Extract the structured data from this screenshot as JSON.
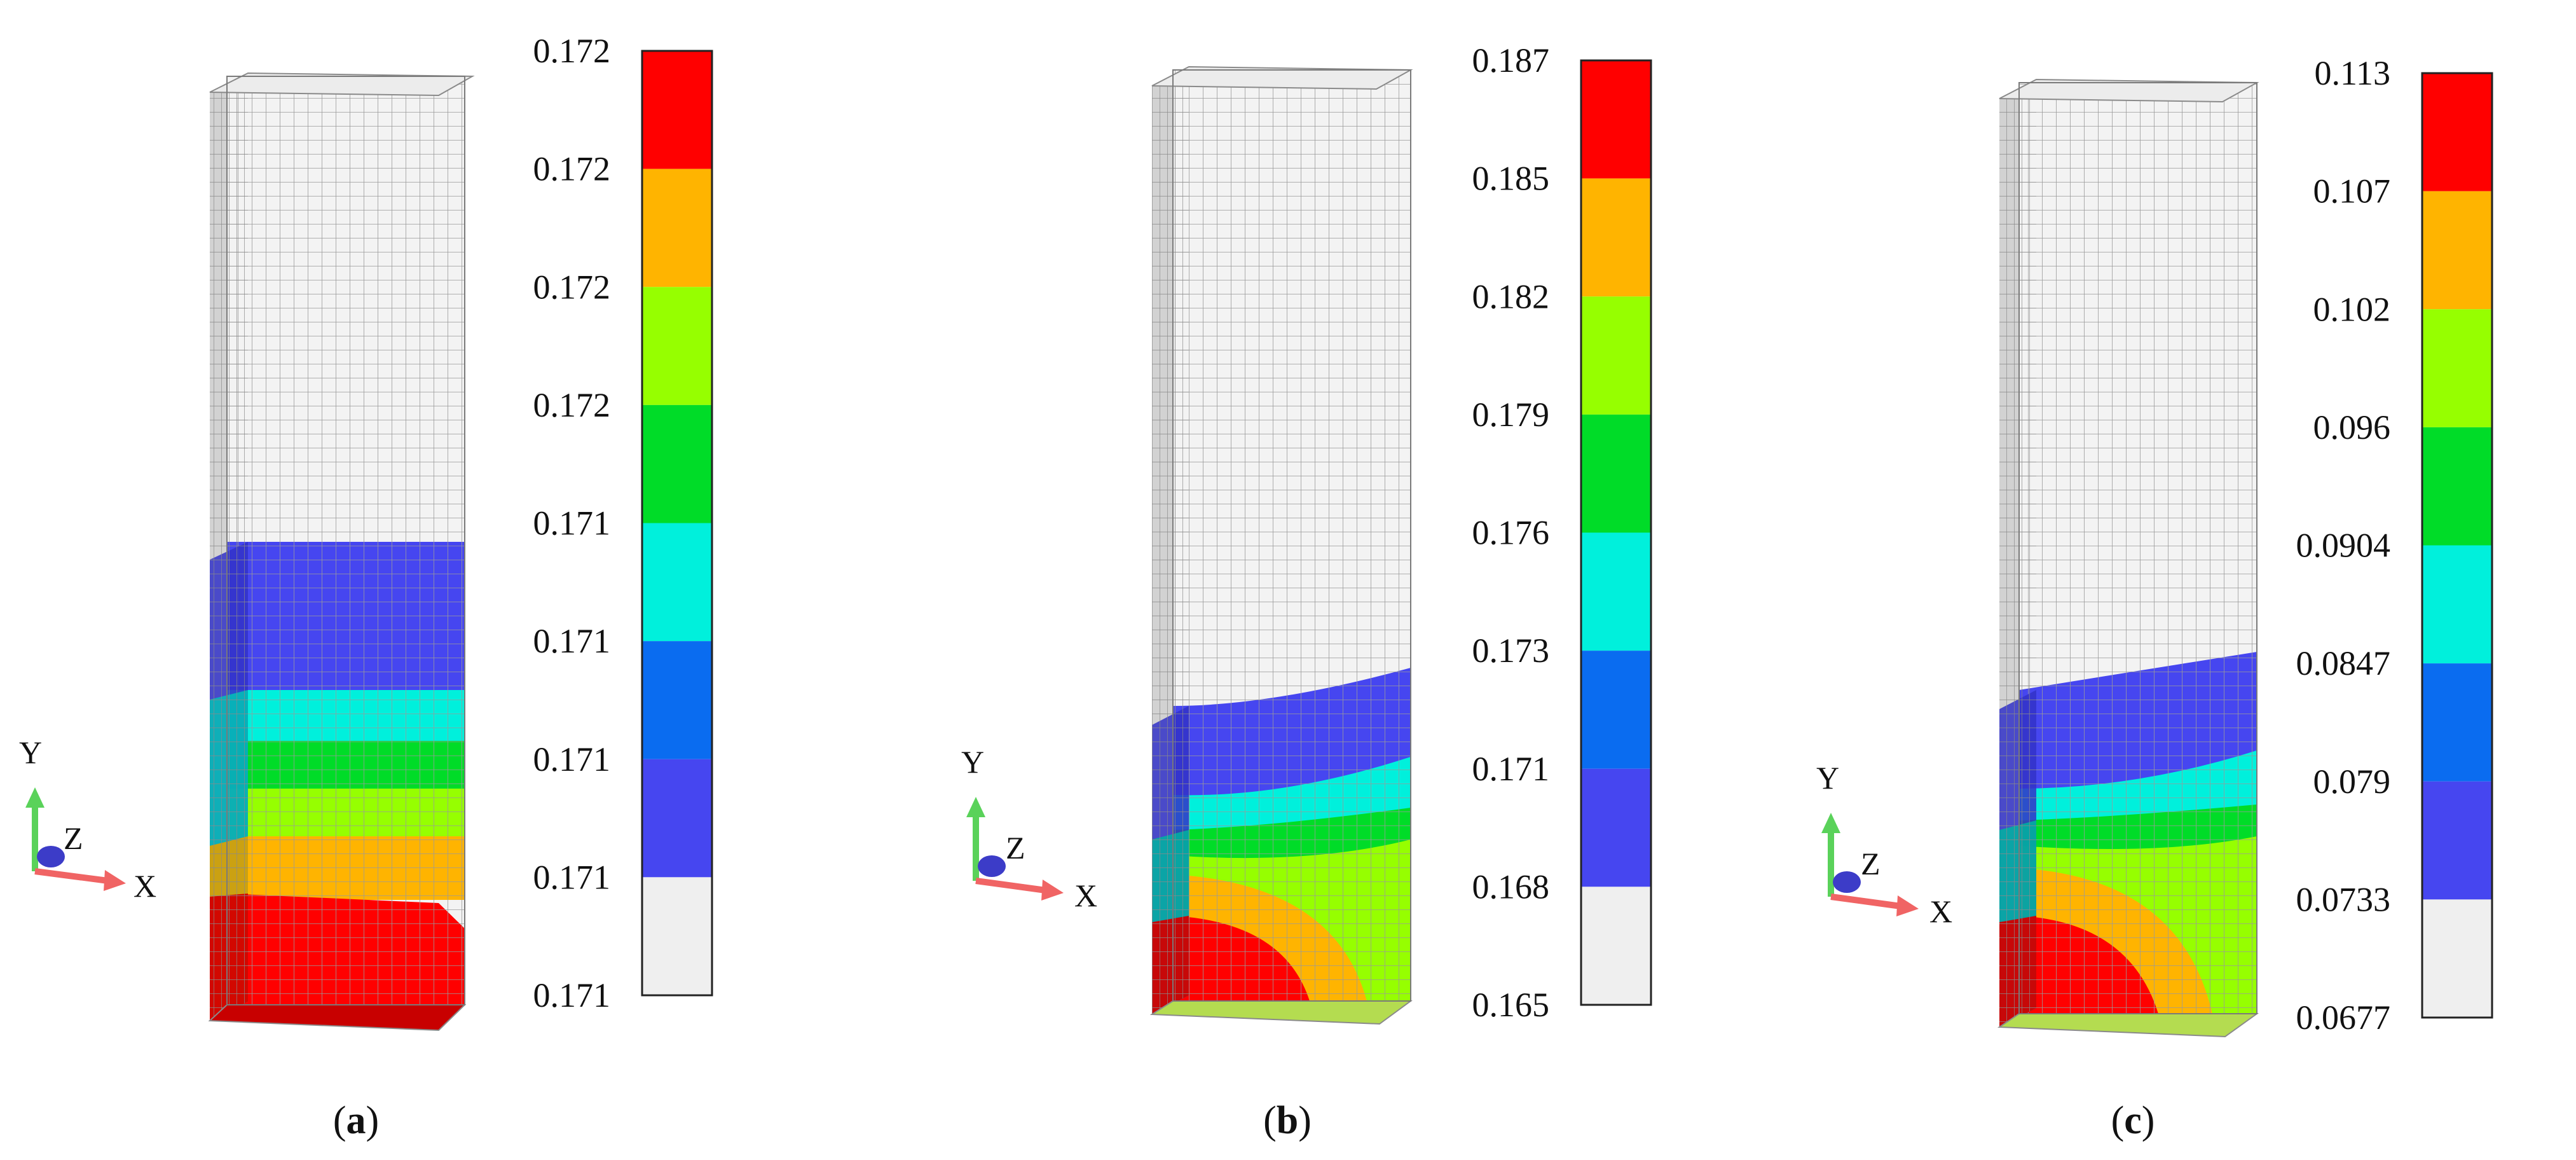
{
  "colors": {
    "band0": "#efefef",
    "band1": "#4646f0",
    "band2": "#0a6cf0",
    "band3": "#00f0dc",
    "band4": "#00dc28",
    "band5": "#96ff00",
    "band6": "#ffb400",
    "band7": "#ff0000",
    "mesh_line": "#9a9a9a",
    "unresolved_face": "#f3f3f3",
    "side_face": "#d2d2d2",
    "axis_y": "#5ad25a",
    "axis_x": "#f06464",
    "axis_z": "#3c3cc8"
  },
  "panels": [
    {
      "id": "a",
      "caption_open": "(",
      "caption_letter": "a",
      "caption_close": ")",
      "axis_labels": {
        "y": "Y",
        "z": "Z",
        "x": "X"
      },
      "colorbar_ticks": [
        "0.172",
        "0.172",
        "0.172",
        "0.172",
        "0.171",
        "0.171",
        "0.171",
        "0.171",
        "0.171"
      ],
      "bands_top_to_bottom": [
        "band7",
        "band6",
        "band5",
        "band4",
        "band3",
        "band2",
        "band1",
        "band0"
      ],
      "icons": [
        "mesh-block-icon",
        "triad-axes-icon"
      ]
    },
    {
      "id": "b",
      "caption_open": "(",
      "caption_letter": "b",
      "caption_close": ")",
      "axis_labels": {
        "y": "Y",
        "z": "Z",
        "x": "X"
      },
      "colorbar_ticks": [
        "0.187",
        "0.185",
        "0.182",
        "0.179",
        "0.176",
        "0.173",
        "0.171",
        "0.168",
        "0.165"
      ],
      "bands_top_to_bottom": [
        "band7",
        "band6",
        "band5",
        "band4",
        "band3",
        "band2",
        "band1",
        "band0"
      ],
      "icons": [
        "mesh-block-icon",
        "triad-axes-icon"
      ]
    },
    {
      "id": "c",
      "caption_open": "(",
      "caption_letter": "c",
      "caption_close": ")",
      "axis_labels": {
        "y": "Y",
        "z": "Z",
        "x": "X"
      },
      "colorbar_ticks": [
        "0.113",
        "0.107",
        "0.102",
        "0.096",
        "0.0904",
        "0.0847",
        "0.079",
        "0.0733",
        "0.0677"
      ],
      "bands_top_to_bottom": [
        "band7",
        "band6",
        "band5",
        "band4",
        "band3",
        "band2",
        "band1",
        "band0"
      ],
      "icons": [
        "mesh-block-icon",
        "triad-axes-icon"
      ]
    }
  ]
}
